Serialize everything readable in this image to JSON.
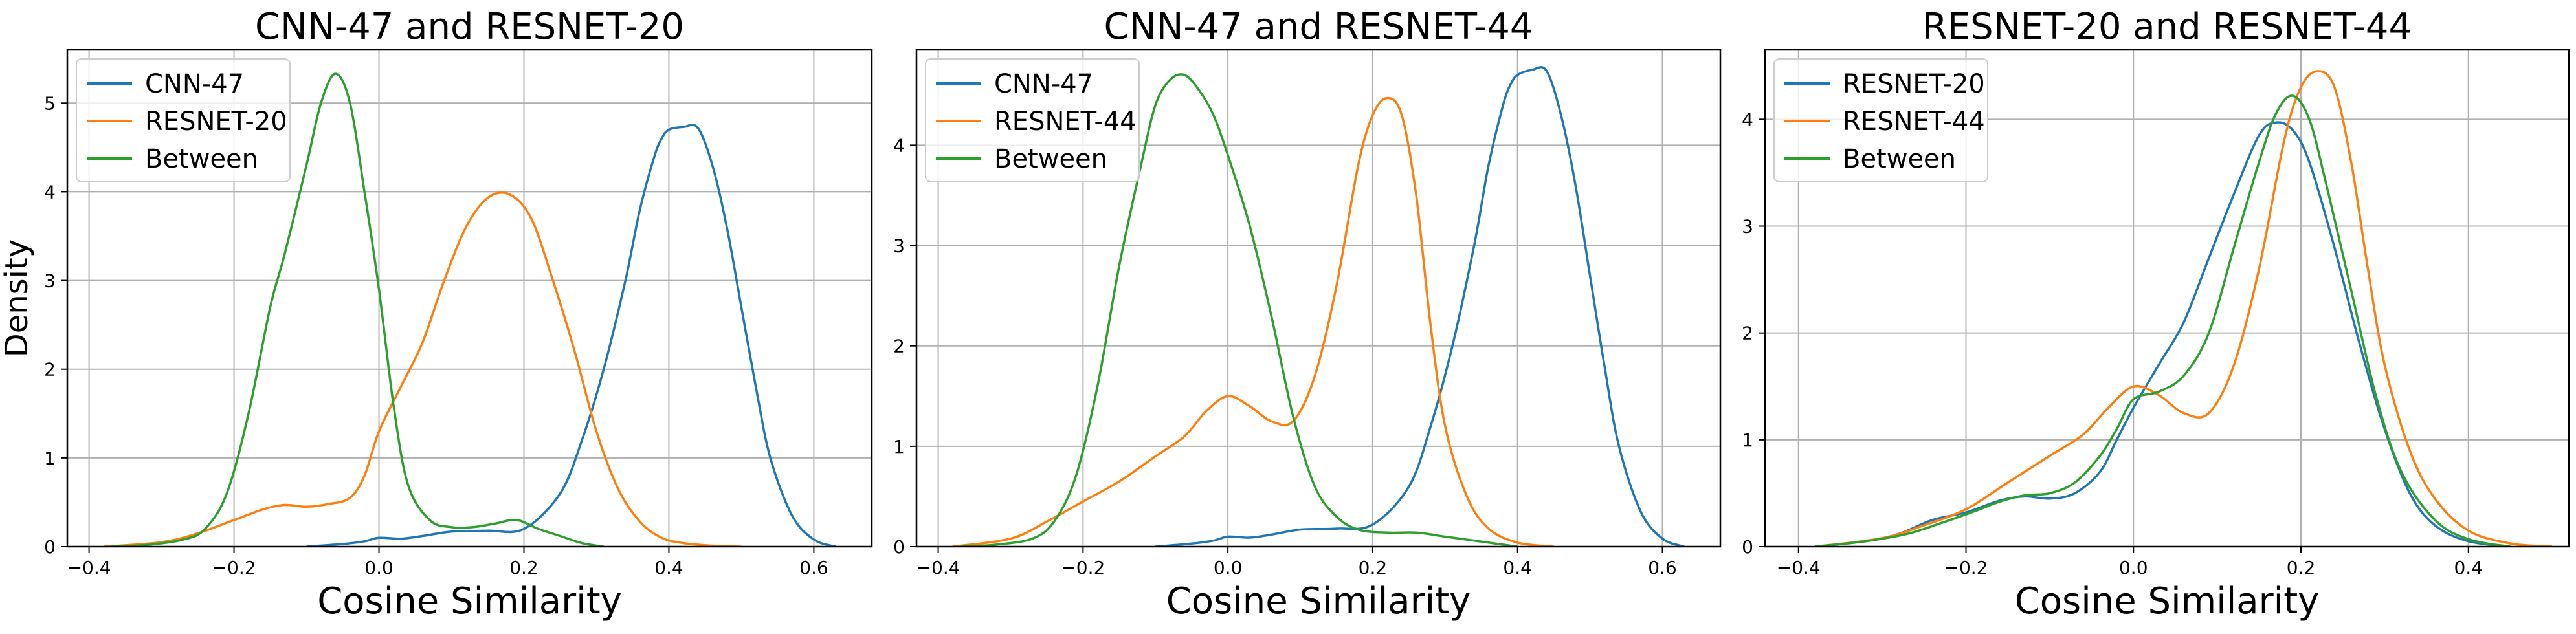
{
  "chart_data": [
    {
      "type": "line",
      "title": "CNN-47 and RESNET-20",
      "xlabel": "Cosine Similarity",
      "ylabel": "Density",
      "xlim": [
        -0.43,
        0.68
      ],
      "ylim": [
        0,
        5.6
      ],
      "xticks": [
        -0.4,
        -0.2,
        0.0,
        0.2,
        0.4,
        0.6
      ],
      "xtick_labels": [
        "−0.4",
        "−0.2",
        "0.0",
        "0.2",
        "0.4",
        "0.6"
      ],
      "yticks": [
        0,
        1,
        2,
        3,
        4,
        5
      ],
      "ytick_labels": [
        "0",
        "1",
        "2",
        "3",
        "4",
        "5"
      ],
      "grid": true,
      "legend_position": "top-left",
      "series": [
        {
          "name": "CNN-47",
          "color": "#1f77b4",
          "x": [
            -0.1,
            -0.05,
            -0.02,
            0.0,
            0.03,
            0.06,
            0.1,
            0.15,
            0.2,
            0.25,
            0.28,
            0.31,
            0.34,
            0.36,
            0.38,
            0.39,
            0.4,
            0.42,
            0.44,
            0.46,
            0.48,
            0.5,
            0.52,
            0.54,
            0.57,
            0.6,
            0.63
          ],
          "y": [
            0.0,
            0.03,
            0.06,
            0.1,
            0.09,
            0.12,
            0.17,
            0.18,
            0.2,
            0.6,
            1.2,
            2.0,
            3.0,
            3.8,
            4.4,
            4.6,
            4.7,
            4.73,
            4.72,
            4.3,
            3.6,
            2.7,
            1.8,
            1.0,
            0.35,
            0.08,
            0.0
          ]
        },
        {
          "name": "RESNET-20",
          "color": "#ff7f0e",
          "x": [
            -0.38,
            -0.3,
            -0.25,
            -0.2,
            -0.16,
            -0.13,
            -0.1,
            -0.07,
            -0.04,
            -0.02,
            0.0,
            0.03,
            0.06,
            0.09,
            0.12,
            0.15,
            0.18,
            0.21,
            0.24,
            0.27,
            0.3,
            0.33,
            0.36,
            0.39,
            0.42,
            0.46,
            0.5
          ],
          "y": [
            0.0,
            0.05,
            0.15,
            0.3,
            0.42,
            0.47,
            0.45,
            0.48,
            0.55,
            0.8,
            1.3,
            1.8,
            2.3,
            3.0,
            3.6,
            3.93,
            3.97,
            3.7,
            3.0,
            2.2,
            1.3,
            0.65,
            0.28,
            0.1,
            0.04,
            0.01,
            0.0
          ]
        },
        {
          "name": "Between",
          "color": "#2ca02c",
          "x": [
            -0.37,
            -0.32,
            -0.27,
            -0.24,
            -0.21,
            -0.18,
            -0.15,
            -0.13,
            -0.1,
            -0.08,
            -0.06,
            -0.04,
            -0.02,
            0.0,
            0.02,
            0.04,
            0.07,
            0.1,
            0.13,
            0.16,
            0.19,
            0.22,
            0.25,
            0.28,
            0.31
          ],
          "y": [
            0.0,
            0.02,
            0.08,
            0.2,
            0.6,
            1.5,
            2.7,
            3.3,
            4.3,
            5.0,
            5.33,
            5.0,
            4.0,
            2.9,
            1.6,
            0.7,
            0.3,
            0.22,
            0.22,
            0.26,
            0.3,
            0.2,
            0.12,
            0.04,
            0.0
          ]
        }
      ]
    },
    {
      "type": "line",
      "title": "CNN-47 and RESNET-44",
      "xlabel": "Cosine Similarity",
      "ylabel": "",
      "xlim": [
        -0.43,
        0.68
      ],
      "ylim": [
        0,
        4.95
      ],
      "xticks": [
        -0.4,
        -0.2,
        0.0,
        0.2,
        0.4,
        0.6
      ],
      "xtick_labels": [
        "−0.4",
        "−0.2",
        "0.0",
        "0.2",
        "0.4",
        "0.6"
      ],
      "yticks": [
        0,
        1,
        2,
        3,
        4
      ],
      "ytick_labels": [
        "0",
        "1",
        "2",
        "3",
        "4"
      ],
      "grid": true,
      "legend_position": "top-left",
      "series": [
        {
          "name": "CNN-47",
          "color": "#1f77b4",
          "x": [
            -0.1,
            -0.05,
            -0.02,
            0.0,
            0.03,
            0.06,
            0.1,
            0.15,
            0.2,
            0.25,
            0.28,
            0.31,
            0.34,
            0.36,
            0.38,
            0.39,
            0.4,
            0.42,
            0.44,
            0.46,
            0.48,
            0.5,
            0.52,
            0.54,
            0.57,
            0.6,
            0.63
          ],
          "y": [
            0.0,
            0.03,
            0.06,
            0.1,
            0.09,
            0.12,
            0.17,
            0.18,
            0.22,
            0.6,
            1.2,
            2.0,
            3.0,
            3.8,
            4.4,
            4.6,
            4.7,
            4.75,
            4.74,
            4.3,
            3.6,
            2.7,
            1.8,
            1.0,
            0.35,
            0.08,
            0.0
          ]
        },
        {
          "name": "RESNET-44",
          "color": "#ff7f0e",
          "x": [
            -0.38,
            -0.3,
            -0.25,
            -0.2,
            -0.15,
            -0.1,
            -0.06,
            -0.03,
            0.0,
            0.03,
            0.06,
            0.09,
            0.12,
            0.15,
            0.18,
            0.2,
            0.22,
            0.24,
            0.26,
            0.28,
            0.3,
            0.33,
            0.36,
            0.4,
            0.45
          ],
          "y": [
            0.0,
            0.08,
            0.25,
            0.45,
            0.65,
            0.9,
            1.1,
            1.35,
            1.5,
            1.4,
            1.25,
            1.25,
            1.7,
            2.6,
            3.8,
            4.3,
            4.47,
            4.3,
            3.5,
            2.2,
            1.2,
            0.5,
            0.18,
            0.04,
            0.0
          ]
        },
        {
          "name": "Between",
          "color": "#2ca02c",
          "x": [
            -0.37,
            -0.32,
            -0.27,
            -0.24,
            -0.21,
            -0.18,
            -0.15,
            -0.12,
            -0.1,
            -0.08,
            -0.06,
            -0.04,
            -0.02,
            0.0,
            0.03,
            0.06,
            0.09,
            0.12,
            0.15,
            0.18,
            0.22,
            0.26,
            0.3,
            0.35,
            0.4
          ],
          "y": [
            0.0,
            0.02,
            0.08,
            0.25,
            0.7,
            1.6,
            2.8,
            3.8,
            4.4,
            4.65,
            4.7,
            4.55,
            4.3,
            3.9,
            3.2,
            2.3,
            1.3,
            0.6,
            0.3,
            0.17,
            0.14,
            0.14,
            0.1,
            0.05,
            0.0
          ]
        }
      ]
    },
    {
      "type": "line",
      "title": "RESNET-20 and RESNET-44",
      "xlabel": "Cosine Similarity",
      "ylabel": "",
      "xlim": [
        -0.44,
        0.52
      ],
      "ylim": [
        0,
        4.65
      ],
      "xticks": [
        -0.4,
        -0.2,
        0.0,
        0.2,
        0.4
      ],
      "xtick_labels": [
        "−0.4",
        "−0.2",
        "0.0",
        "0.2",
        "0.4"
      ],
      "yticks": [
        0,
        1,
        2,
        3,
        4
      ],
      "ytick_labels": [
        "0",
        "1",
        "2",
        "3",
        "4"
      ],
      "grid": true,
      "legend_position": "top-left",
      "series": [
        {
          "name": "RESNET-20",
          "color": "#1f77b4",
          "x": [
            -0.38,
            -0.32,
            -0.28,
            -0.24,
            -0.2,
            -0.16,
            -0.13,
            -0.1,
            -0.07,
            -0.04,
            -0.02,
            0.0,
            0.03,
            0.06,
            0.09,
            0.12,
            0.15,
            0.17,
            0.19,
            0.21,
            0.24,
            0.27,
            0.3,
            0.33,
            0.36,
            0.4,
            0.45
          ],
          "y": [
            0.0,
            0.05,
            0.12,
            0.25,
            0.32,
            0.43,
            0.47,
            0.45,
            0.5,
            0.7,
            1.0,
            1.3,
            1.7,
            2.1,
            2.7,
            3.3,
            3.85,
            3.97,
            3.9,
            3.6,
            2.8,
            1.9,
            1.1,
            0.5,
            0.2,
            0.05,
            0.0
          ]
        },
        {
          "name": "RESNET-44",
          "color": "#ff7f0e",
          "x": [
            -0.38,
            -0.3,
            -0.25,
            -0.2,
            -0.15,
            -0.1,
            -0.06,
            -0.03,
            0.0,
            0.03,
            0.06,
            0.09,
            0.12,
            0.15,
            0.18,
            0.2,
            0.22,
            0.24,
            0.26,
            0.28,
            0.3,
            0.33,
            0.36,
            0.4,
            0.45,
            0.5
          ],
          "y": [
            0.0,
            0.08,
            0.2,
            0.35,
            0.6,
            0.85,
            1.05,
            1.3,
            1.5,
            1.42,
            1.25,
            1.25,
            1.7,
            2.6,
            3.8,
            4.3,
            4.45,
            4.3,
            3.6,
            2.6,
            1.7,
            0.9,
            0.45,
            0.15,
            0.03,
            0.0
          ]
        },
        {
          "name": "Between",
          "color": "#2ca02c",
          "x": [
            -0.38,
            -0.32,
            -0.27,
            -0.23,
            -0.19,
            -0.16,
            -0.13,
            -0.1,
            -0.07,
            -0.04,
            -0.02,
            0.0,
            0.03,
            0.06,
            0.09,
            0.12,
            0.15,
            0.17,
            0.19,
            0.21,
            0.23,
            0.26,
            0.29,
            0.32,
            0.36,
            0.4,
            0.45
          ],
          "y": [
            0.0,
            0.05,
            0.12,
            0.22,
            0.33,
            0.42,
            0.48,
            0.5,
            0.6,
            0.85,
            1.1,
            1.38,
            1.45,
            1.6,
            2.0,
            2.8,
            3.6,
            4.05,
            4.22,
            4.0,
            3.4,
            2.4,
            1.4,
            0.7,
            0.25,
            0.07,
            0.0
          ]
        }
      ]
    }
  ]
}
